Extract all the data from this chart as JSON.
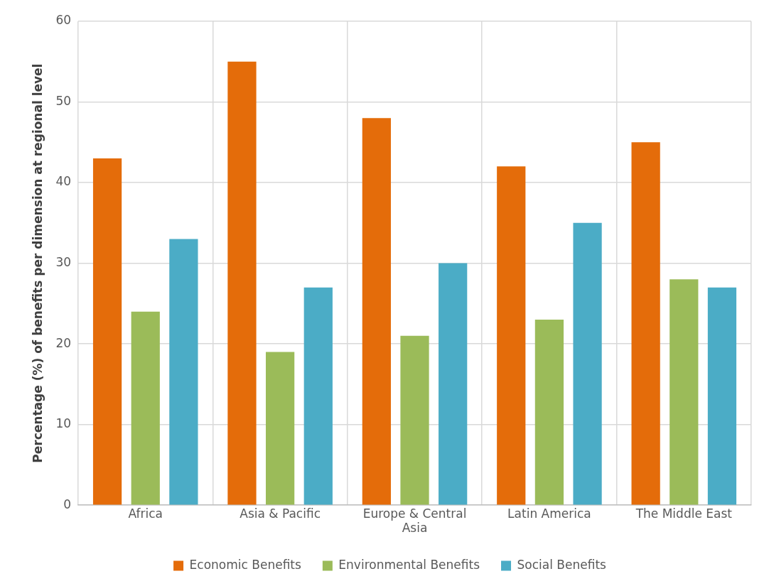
{
  "chart_data": {
    "type": "bar",
    "ylabel": "Percentage (%) of benefits per dimension at regional level",
    "categories": [
      "Africa",
      "Asia & Pacific",
      "Europe & Central Asia",
      "Latin America",
      "The Middle East"
    ],
    "series": [
      {
        "name": "Economic Benefits",
        "color": "#e46c0a",
        "values": [
          43,
          55,
          48,
          42,
          45
        ]
      },
      {
        "name": "Environmental Benefits",
        "color": "#9bbb59",
        "values": [
          24,
          19,
          21,
          23,
          28
        ]
      },
      {
        "name": "Social Benefits",
        "color": "#4bacc6",
        "values": [
          33,
          27,
          30,
          35,
          27
        ]
      }
    ],
    "ylim": [
      0,
      60
    ],
    "yticks": [
      0,
      10,
      20,
      30,
      40,
      50,
      60
    ],
    "grid": true,
    "legend": "bottom"
  }
}
